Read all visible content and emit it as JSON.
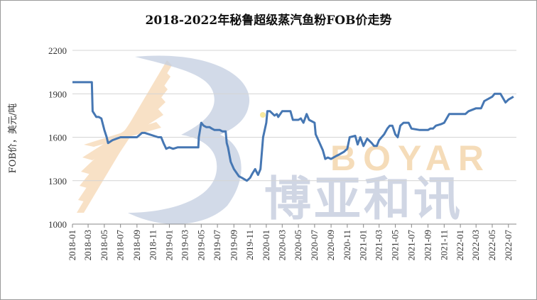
{
  "chart_data": {
    "type": "line",
    "title": "2018-2022年秘鲁超级蒸汽鱼粉FOB价走势",
    "xlabel": "",
    "ylabel": "FOB价，美元/吨",
    "ylim": [
      1000,
      2200
    ],
    "yticks": [
      1000,
      1300,
      1600,
      1900,
      2200
    ],
    "grid": "horizontal",
    "line_color": "#4677b3",
    "x_tick_labels": [
      "2018-01",
      "2018-03",
      "2018-05",
      "2018-07",
      "2018-09",
      "2018-11",
      "2019-01",
      "2019-03",
      "2019-05",
      "2019-07",
      "2019-09",
      "2019-11",
      "2020-01",
      "2020-03",
      "2020-05",
      "2020-07",
      "2020-09",
      "2020-11",
      "2021-01",
      "2021-03",
      "2021-05",
      "2021-07",
      "2021-09",
      "2021-11",
      "2022-01",
      "2022-03",
      "2022-05",
      "2022-07"
    ],
    "series": [
      {
        "x": [
          "2018-01-01",
          "2018-03-15",
          "2018-03-18",
          "2018-04-01",
          "2018-04-10",
          "2018-04-20",
          "2018-05-01",
          "2018-05-10",
          "2018-05-15",
          "2018-06-01",
          "2018-07-01",
          "2018-07-20",
          "2018-08-01",
          "2018-08-20",
          "2018-09-01",
          "2018-09-20",
          "2018-10-01",
          "2018-11-20",
          "2018-12-01",
          "2018-12-10",
          "2018-12-20",
          "2019-01-01",
          "2019-01-15",
          "2019-02-01",
          "2019-02-20",
          "2019-03-01",
          "2019-04-01",
          "2019-04-20",
          "2019-04-22",
          "2019-05-01",
          "2019-05-10",
          "2019-05-20",
          "2019-06-01",
          "2019-06-10",
          "2019-06-20",
          "2019-07-01",
          "2019-07-10",
          "2019-07-20",
          "2019-08-01",
          "2019-08-05",
          "2019-08-10",
          "2019-08-20",
          "2019-09-01",
          "2019-09-20",
          "2019-10-01",
          "2019-10-10",
          "2019-10-20",
          "2019-11-01",
          "2019-11-10",
          "2019-11-20",
          "2019-12-01",
          "2019-12-10",
          "2019-12-20",
          "2020-01-01",
          "2020-01-05",
          "2020-01-15",
          "2020-02-01",
          "2020-02-10",
          "2020-02-15",
          "2020-03-01",
          "2020-03-15",
          "2020-04-01",
          "2020-04-10",
          "2020-05-01",
          "2020-05-10",
          "2020-05-20",
          "2020-06-01",
          "2020-06-10",
          "2020-07-01",
          "2020-07-05",
          "2020-07-20",
          "2020-08-01",
          "2020-08-10",
          "2020-08-20",
          "2020-09-01",
          "2020-09-20",
          "2020-10-01",
          "2020-10-20",
          "2020-11-01",
          "2020-11-10",
          "2020-12-01",
          "2020-12-10",
          "2020-12-20",
          "2021-01-01",
          "2021-01-15",
          "2021-02-01",
          "2021-02-10",
          "2021-02-20",
          "2021-03-01",
          "2021-03-20",
          "2021-04-01",
          "2021-04-10",
          "2021-04-20",
          "2021-05-01",
          "2021-05-10",
          "2021-05-20",
          "2021-06-01",
          "2021-06-20",
          "2021-07-01",
          "2021-08-01",
          "2021-09-01",
          "2021-09-10",
          "2021-09-20",
          "2021-10-01",
          "2021-10-20",
          "2021-11-01",
          "2021-11-20",
          "2022-01-01",
          "2022-01-20",
          "2022-02-01",
          "2022-03-01",
          "2022-03-10",
          "2022-03-20",
          "2022-04-01",
          "2022-05-01",
          "2022-05-10",
          "2022-05-20",
          "2022-06-01",
          "2022-06-20",
          "2022-07-01",
          "2022-07-20"
        ],
        "y": [
          1980,
          1980,
          1780,
          1740,
          1740,
          1730,
          1650,
          1600,
          1560,
          1580,
          1600,
          1600,
          1600,
          1600,
          1600,
          1630,
          1630,
          1600,
          1600,
          1560,
          1520,
          1530,
          1520,
          1530,
          1530,
          1530,
          1530,
          1530,
          1600,
          1700,
          1680,
          1670,
          1670,
          1660,
          1650,
          1650,
          1650,
          1640,
          1640,
          1560,
          1530,
          1430,
          1380,
          1330,
          1320,
          1310,
          1300,
          1320,
          1350,
          1380,
          1340,
          1380,
          1600,
          1700,
          1780,
          1780,
          1750,
          1760,
          1740,
          1780,
          1780,
          1780,
          1720,
          1720,
          1730,
          1700,
          1760,
          1720,
          1700,
          1620,
          1560,
          1510,
          1450,
          1460,
          1450,
          1470,
          1480,
          1500,
          1520,
          1600,
          1610,
          1550,
          1600,
          1540,
          1590,
          1560,
          1540,
          1540,
          1580,
          1620,
          1660,
          1680,
          1680,
          1620,
          1600,
          1680,
          1700,
          1700,
          1660,
          1650,
          1650,
          1660,
          1660,
          1680,
          1690,
          1700,
          1760,
          1760,
          1760,
          1780,
          1800,
          1800,
          1800,
          1850,
          1880,
          1900,
          1900,
          1900,
          1840,
          1860,
          1880
        ]
      }
    ]
  },
  "watermark": {
    "text_cn": "博亚和讯",
    "text_en": "BOYAR",
    "cn_color": "#c8cfe0",
    "en_color": "#f5d9b2",
    "logo_glyph": "B"
  }
}
